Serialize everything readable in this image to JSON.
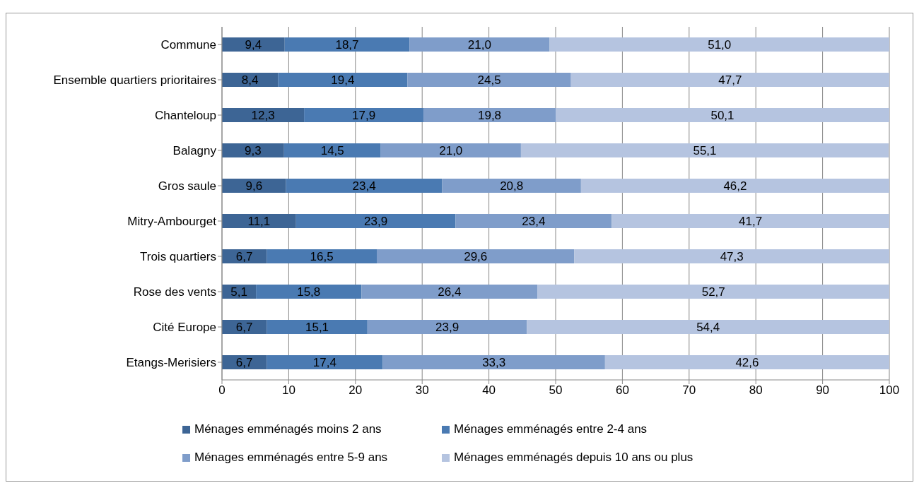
{
  "chart_data": {
    "type": "bar",
    "orientation": "horizontal",
    "stacked": true,
    "data_labels": true,
    "grid": "x",
    "legend": "bottom",
    "categories": [
      "Commune",
      "Ensemble quartiers prioritaires",
      "Chanteloup",
      "Balagny",
      "Gros saule",
      "Mitry-Ambourget",
      "Trois quartiers",
      "Rose des vents",
      "Cité Europe",
      "Etangs-Merisiers"
    ],
    "xlim": [
      0,
      100
    ],
    "xticks": [
      0,
      10,
      20,
      30,
      40,
      50,
      60,
      70,
      80,
      90,
      100
    ],
    "series": [
      {
        "name": "Ménages emménagés moins 2 ans",
        "color": "#3d6595",
        "values": [
          9.4,
          8.4,
          12.3,
          9.3,
          9.6,
          11.1,
          6.7,
          5.1,
          6.7,
          6.7
        ],
        "value_labels": [
          "9,4",
          "8,4",
          "12,3",
          "9,3",
          "9,6",
          "11,1",
          "6,7",
          "5,1",
          "6,7",
          "6,7"
        ]
      },
      {
        "name": "Ménages emménagés entre 2-4 ans",
        "color": "#4a7ab2",
        "values": [
          18.7,
          19.4,
          17.9,
          14.5,
          23.4,
          23.9,
          16.5,
          15.8,
          15.1,
          17.4
        ],
        "value_labels": [
          "18,7",
          "19,4",
          "17,9",
          "14,5",
          "23,4",
          "23,9",
          "16,5",
          "15,8",
          "15,1",
          "17,4"
        ]
      },
      {
        "name": "Ménages emménagés entre 5-9 ans",
        "color": "#7f9dca",
        "values": [
          21.0,
          24.5,
          19.8,
          21.0,
          20.8,
          23.4,
          29.6,
          26.4,
          23.9,
          33.3
        ],
        "value_labels": [
          "21,0",
          "24,5",
          "19,8",
          "21,0",
          "20,8",
          "23,4",
          "29,6",
          "26,4",
          "23,9",
          "33,3"
        ]
      },
      {
        "name": "Ménages emménagés depuis 10 ans ou plus",
        "color": "#b5c4e0",
        "values": [
          51.0,
          47.7,
          50.1,
          55.1,
          46.2,
          41.7,
          47.3,
          52.7,
          54.4,
          42.6
        ],
        "value_labels": [
          "51,0",
          "47,7",
          "50,1",
          "55,1",
          "46,2",
          "41,7",
          "47,3",
          "52,7",
          "54,4",
          "42,6"
        ]
      }
    ]
  }
}
